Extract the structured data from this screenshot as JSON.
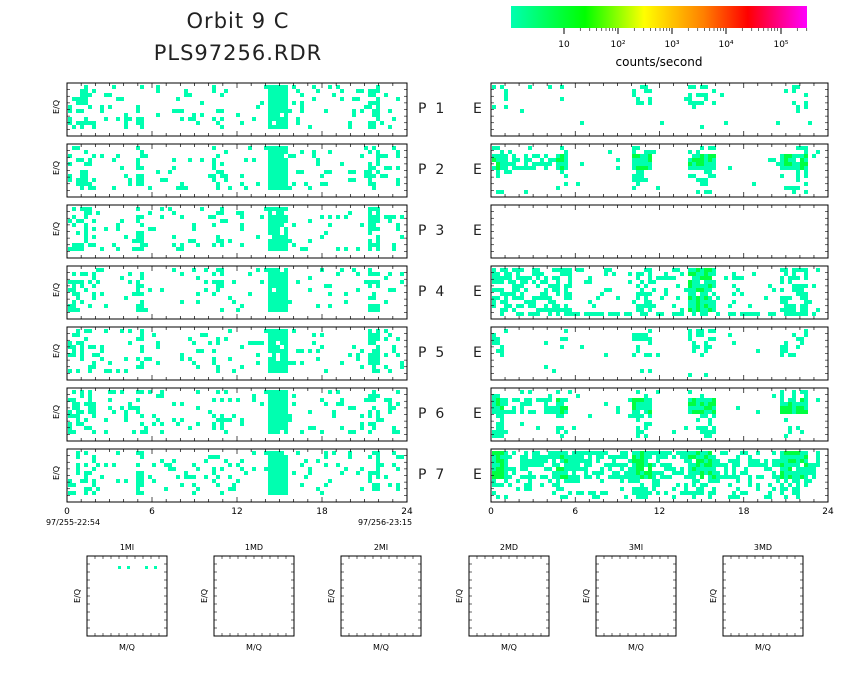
{
  "title_line1": "Orbit 9 C",
  "title_line2": "PLS97256.RDR",
  "colorbar": {
    "label": "counts/second",
    "ticks": [
      "10",
      "10²",
      "10³",
      "10⁴",
      "10⁵"
    ],
    "colors": [
      "#00ffb0",
      "#00ff00",
      "#ffff00",
      "#ff8000",
      "#ff0000",
      "#ff00ff"
    ]
  },
  "spectrogram": {
    "ylabel": "E/Q",
    "x_ticks": [
      0,
      6,
      12,
      18,
      24
    ],
    "xlim": [
      0,
      24
    ],
    "start_time": "97/255-22:54",
    "end_time": "97/256-23:15",
    "letter_right": "E",
    "rows": [
      {
        "label": "P  1"
      },
      {
        "label": "P  2"
      },
      {
        "label": "P  3"
      },
      {
        "label": "P  4"
      },
      {
        "label": "P  5"
      },
      {
        "label": "P  6"
      },
      {
        "label": "P  7"
      }
    ],
    "cell_color": "#00ffb0",
    "strong_color": "#00ff40"
  },
  "mq_panels": {
    "xlabel": "M/Q",
    "ylabel": "E/Q",
    "panels": [
      {
        "title": "1MI"
      },
      {
        "title": "1MD"
      },
      {
        "title": "2MI"
      },
      {
        "title": "2MD"
      },
      {
        "title": "3MI"
      },
      {
        "title": "3MD"
      }
    ]
  }
}
